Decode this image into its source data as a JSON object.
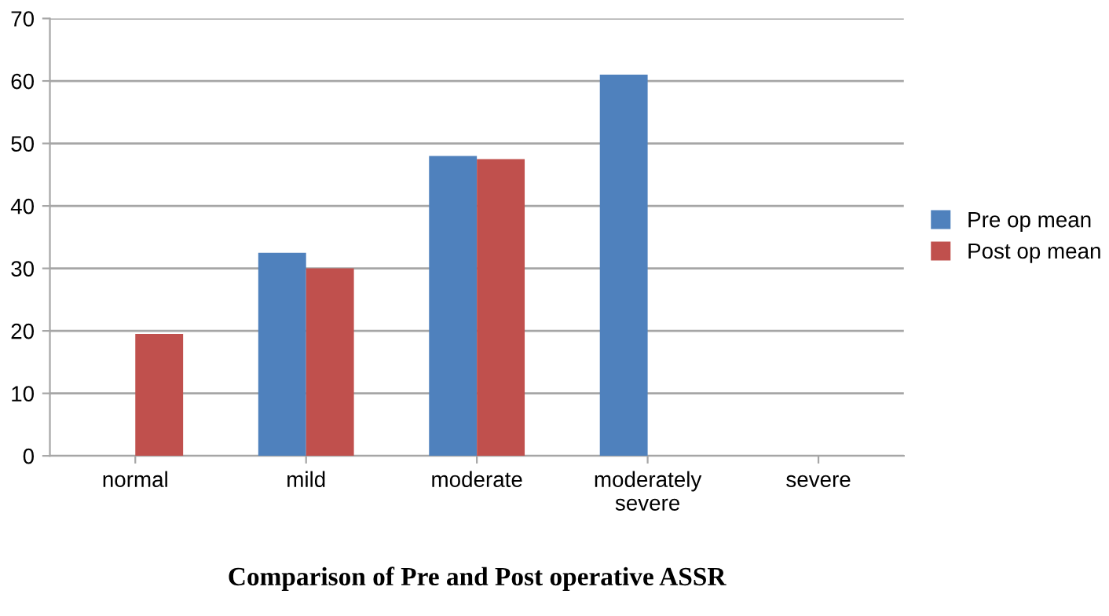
{
  "chart_data": {
    "type": "bar",
    "title": "Comparison of Pre and Post operative ASSR",
    "categories": [
      "normal",
      "mild",
      "moderate",
      "moderately\nsevere",
      "severe"
    ],
    "series": [
      {
        "name": "Pre op mean",
        "color": "#4f81bd",
        "values": [
          0,
          32.5,
          48,
          61,
          0
        ]
      },
      {
        "name": "Post op mean",
        "color": "#c0504d",
        "values": [
          19.5,
          30,
          47.5,
          0,
          0
        ]
      }
    ],
    "ylim": [
      0,
      70
    ],
    "yticks": [
      0,
      10,
      20,
      30,
      40,
      50,
      60,
      70
    ],
    "grid": "y",
    "legend": "right"
  }
}
